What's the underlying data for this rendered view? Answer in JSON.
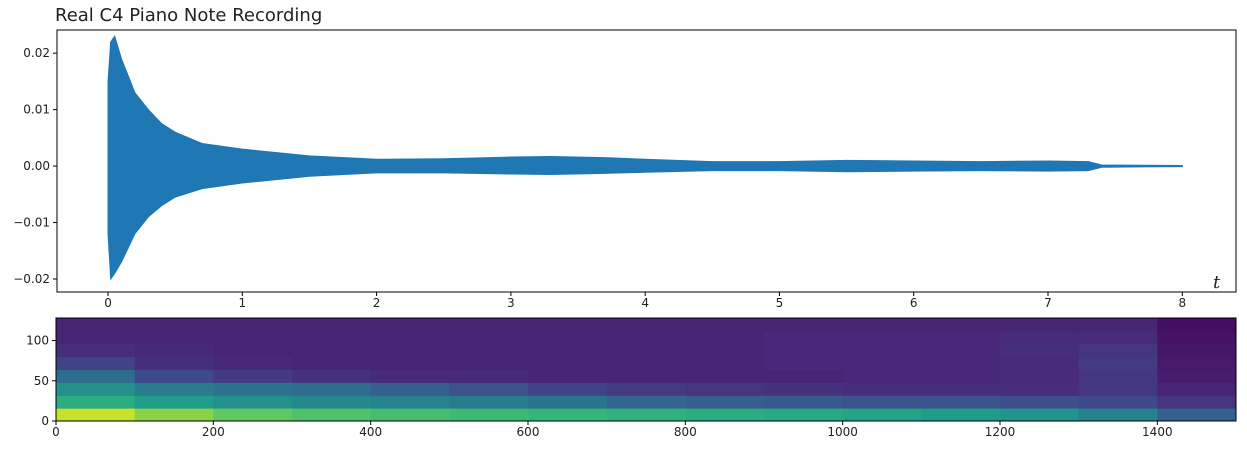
{
  "chart_data": [
    {
      "type": "envelope",
      "title": "Real C4 Piano Note Recording",
      "x_label": "t",
      "color": "#1f77b4",
      "x": [
        0,
        0.02,
        0.05,
        0.1,
        0.2,
        0.3,
        0.4,
        0.5,
        0.7,
        1.0,
        1.5,
        2.0,
        2.5,
        3.0,
        3.3,
        3.7,
        4.0,
        4.5,
        5.0,
        5.5,
        6.0,
        6.5,
        7.0,
        7.3,
        7.4,
        8.0
      ],
      "upper": [
        0.015,
        0.022,
        0.023,
        0.019,
        0.013,
        0.01,
        0.0075,
        0.006,
        0.004,
        0.003,
        0.0018,
        0.0012,
        0.0013,
        0.0016,
        0.0017,
        0.0015,
        0.0012,
        0.0008,
        0.0008,
        0.001,
        0.0009,
        0.0008,
        0.0009,
        0.0008,
        0.0002,
        0.0001
      ],
      "lower": [
        -0.012,
        -0.02,
        -0.019,
        -0.017,
        -0.012,
        -0.009,
        -0.007,
        -0.0055,
        -0.004,
        -0.003,
        -0.0018,
        -0.0012,
        -0.0012,
        -0.0014,
        -0.0015,
        -0.0013,
        -0.0011,
        -0.0008,
        -0.0008,
        -0.001,
        -0.0009,
        -0.0008,
        -0.0009,
        -0.0008,
        -0.0002,
        -0.0001
      ],
      "xlim": [
        -0.38,
        8.4
      ],
      "xticks": [
        0,
        1,
        2,
        3,
        4,
        5,
        6,
        7,
        8
      ],
      "ylim": [
        -0.0223,
        0.0241
      ],
      "yticks": [
        {
          "value": -0.02,
          "label": "−0.02"
        },
        {
          "value": -0.01,
          "label": "−0.01"
        },
        {
          "value": 0,
          "label": "0.00"
        },
        0.01,
        0.02
      ]
    },
    {
      "type": "heatmap",
      "colormap": "viridis",
      "xbins": [
        0,
        100,
        200,
        300,
        400,
        500,
        600,
        700,
        800,
        900,
        1000,
        1100,
        1200,
        1300,
        1400,
        1500
      ],
      "ybins": [
        0,
        16,
        32,
        48,
        64,
        80,
        96,
        112,
        128
      ],
      "values": [
        [
          0.92,
          0.82,
          0.75,
          0.72,
          0.7,
          0.68,
          0.66,
          0.64,
          0.62,
          0.6,
          0.58,
          0.55,
          0.52,
          0.45,
          0.3
        ],
        [
          0.62,
          0.55,
          0.5,
          0.47,
          0.45,
          0.42,
          0.38,
          0.33,
          0.3,
          0.28,
          0.26,
          0.25,
          0.24,
          0.22,
          0.15
        ],
        [
          0.5,
          0.42,
          0.38,
          0.35,
          0.3,
          0.25,
          0.2,
          0.17,
          0.15,
          0.14,
          0.13,
          0.13,
          0.13,
          0.16,
          0.1
        ],
        [
          0.35,
          0.22,
          0.17,
          0.14,
          0.12,
          0.11,
          0.1,
          0.1,
          0.1,
          0.1,
          0.11,
          0.11,
          0.12,
          0.16,
          0.08
        ],
        [
          0.2,
          0.13,
          0.11,
          0.1,
          0.1,
          0.1,
          0.1,
          0.1,
          0.1,
          0.11,
          0.11,
          0.11,
          0.12,
          0.17,
          0.07
        ],
        [
          0.13,
          0.11,
          0.1,
          0.1,
          0.1,
          0.1,
          0.1,
          0.1,
          0.1,
          0.11,
          0.11,
          0.11,
          0.13,
          0.15,
          0.06
        ],
        [
          0.1,
          0.1,
          0.1,
          0.1,
          0.1,
          0.1,
          0.1,
          0.1,
          0.1,
          0.11,
          0.11,
          0.11,
          0.12,
          0.12,
          0.05
        ],
        [
          0.1,
          0.1,
          0.1,
          0.1,
          0.1,
          0.1,
          0.1,
          0.1,
          0.1,
          0.1,
          0.1,
          0.1,
          0.1,
          0.1,
          0.04
        ]
      ],
      "xlim": [
        0,
        1500
      ],
      "xticks": [
        0,
        200,
        400,
        600,
        800,
        1000,
        1200,
        1400
      ],
      "ylim": [
        0,
        128
      ],
      "yticks": [
        0,
        50,
        100
      ]
    }
  ]
}
